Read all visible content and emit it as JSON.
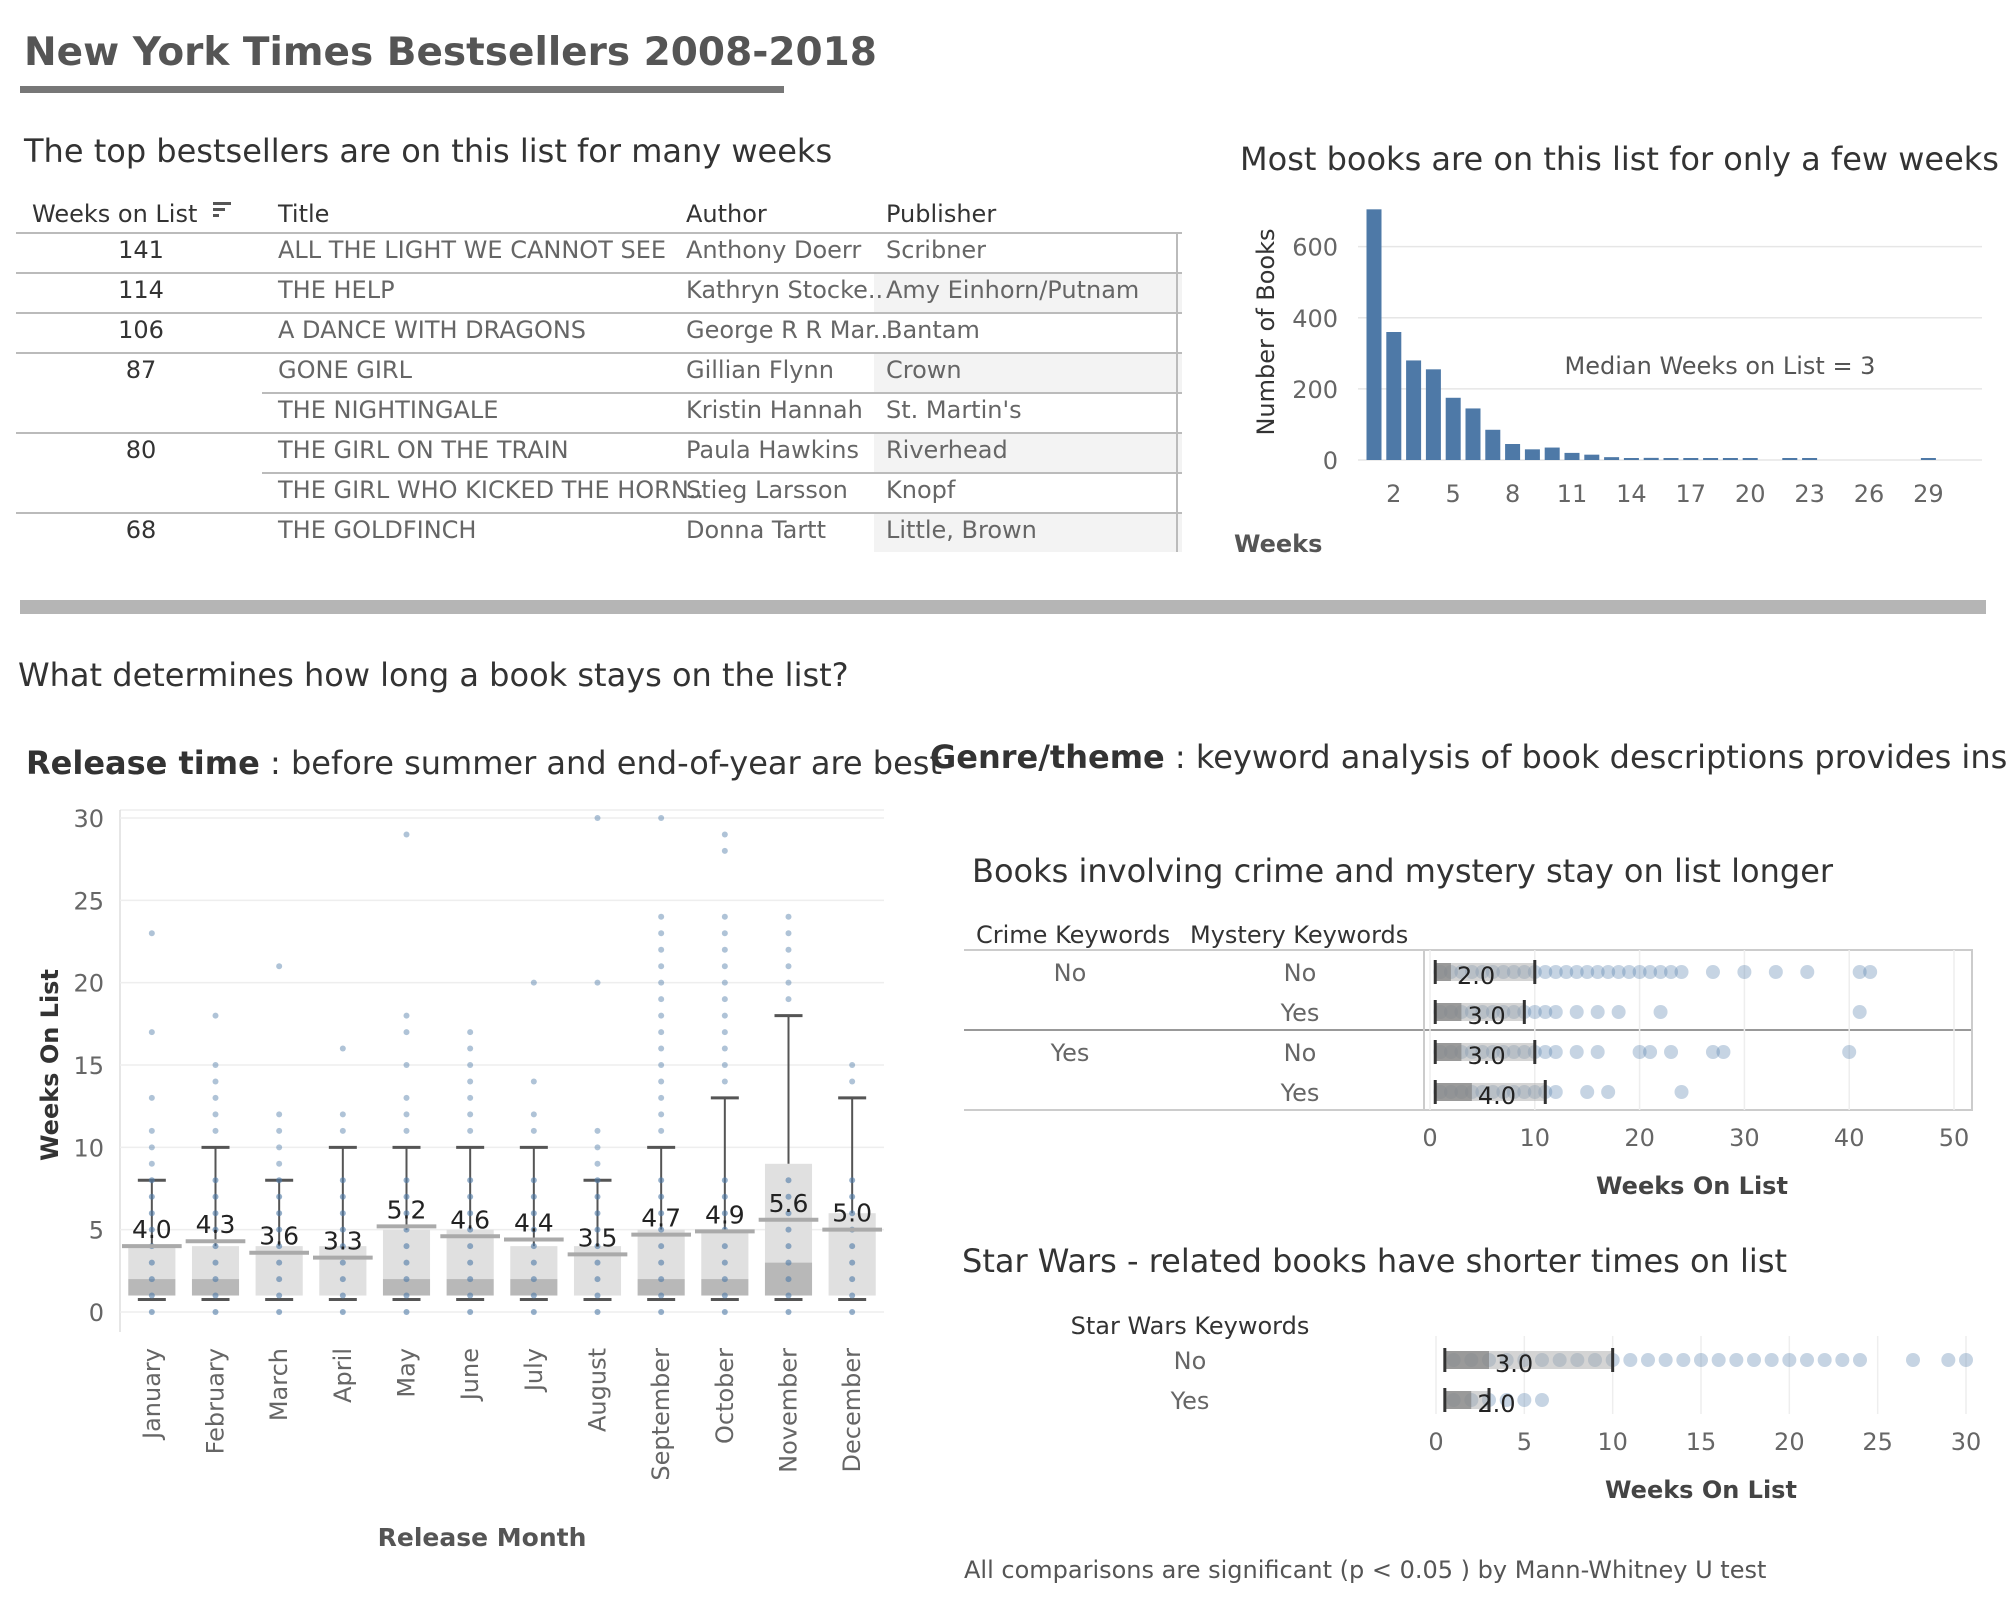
{
  "dashboard": {
    "title": "New York Times Bestsellers 2008-2018",
    "table_heading": "The top bestsellers are on this list for many weeks",
    "hist_heading": "Most books are on this list for only a few weeks",
    "section_heading": "What determines how long a book stays on the list?",
    "release_heading_bold": "Release time",
    "release_heading_rest": " : before summer and end-of-year are best",
    "genre_heading_bold": "Genre/theme",
    "genre_heading_rest": " : keyword analysis of book descriptions provides insight",
    "crime_heading": "Books involving crime and mystery stay on list longer",
    "starwars_heading": "Star Wars - related books have shorter times on list",
    "footnote": "All comparisons are significant (p < 0.05 ) by Mann-Whitney U test"
  },
  "table": {
    "columns": [
      "Weeks on List",
      "Title",
      "Author",
      "Publisher"
    ],
    "sort_icon": "sort-descending-icon",
    "rows": [
      {
        "weeks": "141",
        "title": "ALL THE LIGHT WE CANNOT SEE",
        "author": "Anthony Doerr",
        "publisher": "Scribner"
      },
      {
        "weeks": "114",
        "title": "THE HELP",
        "author": "Kathryn Stocke..",
        "publisher": "Amy Einhorn/Putnam"
      },
      {
        "weeks": "106",
        "title": "A DANCE WITH DRAGONS",
        "author": "George R R Mar..",
        "publisher": "Bantam"
      },
      {
        "weeks": "87",
        "title": "GONE GIRL",
        "author": "Gillian Flynn",
        "publisher": "Crown"
      },
      {
        "weeks": "",
        "title": "THE NIGHTINGALE",
        "author": "Kristin Hannah",
        "publisher": "St. Martin's"
      },
      {
        "weeks": "80",
        "title": "THE GIRL ON THE TRAIN",
        "author": "Paula Hawkins",
        "publisher": "Riverhead"
      },
      {
        "weeks": "",
        "title": "THE GIRL WHO KICKED THE HORN..",
        "author": "Stieg Larsson",
        "publisher": "Knopf"
      },
      {
        "weeks": "68",
        "title": "THE GOLDFINCH",
        "author": "Donna Tartt",
        "publisher": "Little, Brown"
      }
    ]
  },
  "chart_data": [
    {
      "type": "bar",
      "title": "Most books are on this list for only a few weeks",
      "xlabel": "Weeks",
      "ylabel": "Number of Books",
      "ylim": [
        0,
        720
      ],
      "yticks": [
        0,
        200,
        400,
        600
      ],
      "xticks": [
        2,
        5,
        8,
        11,
        14,
        17,
        20,
        23,
        26,
        29
      ],
      "x": [
        1,
        2,
        3,
        4,
        5,
        6,
        7,
        8,
        9,
        10,
        11,
        12,
        13,
        14,
        15,
        16,
        17,
        18,
        19,
        20,
        21,
        22,
        23,
        24,
        25,
        26,
        27,
        28,
        29
      ],
      "values": [
        705,
        360,
        280,
        255,
        175,
        145,
        85,
        45,
        30,
        35,
        20,
        15,
        8,
        5,
        6,
        3,
        3,
        2,
        2,
        2,
        0,
        1,
        1,
        0,
        0,
        0,
        0,
        0,
        1
      ],
      "annotation": "Median Weeks on List = 3",
      "color": "#4e79a7"
    },
    {
      "type": "box",
      "title": "Release time : before summer and end-of-year are best",
      "xlabel": "Release Month",
      "ylabel": "Weeks On List",
      "ylim": [
        0,
        30
      ],
      "yticks": [
        0,
        5,
        10,
        15,
        20,
        25,
        30
      ],
      "categories": [
        "January",
        "February",
        "March",
        "April",
        "May",
        "June",
        "July",
        "August",
        "September",
        "October",
        "November",
        "December"
      ],
      "means": [
        4.0,
        4.3,
        3.6,
        3.3,
        5.2,
        4.6,
        4.4,
        3.5,
        4.7,
        4.9,
        5.6,
        5.0
      ],
      "mean_labels": [
        "4.0",
        "4.3",
        "3.6",
        "3.3",
        "5.2",
        "4.6",
        "4.4",
        "3.5",
        "4.7",
        "4.9",
        "5.6",
        "5.0"
      ],
      "q1": [
        1,
        1,
        1,
        1,
        1,
        1,
        1,
        1,
        1,
        1,
        1,
        1
      ],
      "median": [
        2,
        2,
        1,
        1,
        2,
        2,
        2,
        1,
        2,
        2,
        3,
        1
      ],
      "q3": [
        4,
        4,
        4,
        4,
        5,
        5,
        4,
        4,
        5,
        5,
        9,
        6
      ],
      "whisker_low": [
        0,
        0,
        0,
        0,
        0,
        0,
        0,
        0,
        0,
        0,
        0,
        0
      ],
      "whisker_high": [
        8,
        10,
        8,
        10,
        10,
        10,
        10,
        8,
        10,
        13,
        18,
        13
      ],
      "outliers": [
        [
          9,
          10,
          11,
          13,
          17,
          23
        ],
        [
          11,
          12,
          13,
          14,
          15,
          18
        ],
        [
          9,
          10,
          11,
          12,
          21
        ],
        [
          11,
          12,
          16
        ],
        [
          11,
          12,
          13,
          15,
          17,
          18,
          29
        ],
        [
          11,
          12,
          13,
          14,
          15,
          16,
          17
        ],
        [
          11,
          12,
          14,
          20
        ],
        [
          9,
          10,
          11,
          20,
          30
        ],
        [
          11,
          12,
          13,
          14,
          15,
          16,
          17,
          18,
          19,
          20,
          21,
          22,
          23,
          24,
          30
        ],
        [
          14,
          15,
          16,
          17,
          18,
          19,
          20,
          21,
          22,
          23,
          24,
          28,
          29
        ],
        [
          19,
          20,
          21,
          22,
          23,
          24
        ],
        [
          14,
          15
        ]
      ],
      "color": "#4e79a7"
    },
    {
      "type": "scatter",
      "title": "Books involving crime and mystery stay on list longer",
      "xlabel": "Weeks On List",
      "row_headers": [
        "Crime Keywords",
        "Mystery Keywords"
      ],
      "xlim": [
        0,
        50
      ],
      "xticks": [
        0,
        10,
        20,
        30,
        40,
        50
      ],
      "rows": [
        {
          "crime": "No",
          "mystery": "No",
          "median_label": "2.0",
          "median": 2,
          "q3": 10,
          "points": [
            1,
            2,
            3,
            4,
            5,
            6,
            7,
            8,
            9,
            10,
            11,
            12,
            13,
            14,
            15,
            16,
            17,
            18,
            19,
            20,
            21,
            22,
            23,
            24,
            27,
            30,
            33,
            36,
            41,
            42
          ]
        },
        {
          "crime": "",
          "mystery": "Yes",
          "median_label": "3.0",
          "median": 3,
          "q3": 9,
          "points": [
            1,
            2,
            3,
            4,
            5,
            6,
            7,
            8,
            9,
            10,
            11,
            12,
            14,
            16,
            18,
            22,
            41
          ]
        },
        {
          "crime": "Yes",
          "mystery": "No",
          "median_label": "3.0",
          "median": 3,
          "q3": 10,
          "points": [
            1,
            2,
            3,
            4,
            5,
            6,
            7,
            8,
            9,
            10,
            11,
            12,
            14,
            16,
            20,
            21,
            23,
            27,
            28,
            40
          ]
        },
        {
          "crime": "",
          "mystery": "Yes",
          "median_label": "4.0",
          "median": 4,
          "q3": 11,
          "points": [
            1,
            2,
            3,
            4,
            5,
            6,
            7,
            8,
            9,
            10,
            11,
            12,
            15,
            17,
            24
          ]
        }
      ],
      "color": "#4e79a7"
    },
    {
      "type": "scatter",
      "title": "Star Wars - related books have shorter times on list",
      "xlabel": "Weeks On List",
      "row_headers": [
        "Star Wars Keywords"
      ],
      "xlim": [
        0,
        30
      ],
      "xticks": [
        0,
        5,
        10,
        15,
        20,
        25,
        30
      ],
      "rows": [
        {
          "label": "No",
          "median_label": "3.0",
          "median": 3,
          "q3": 10,
          "points": [
            1,
            2,
            3,
            4,
            5,
            6,
            7,
            8,
            9,
            10,
            11,
            12,
            13,
            14,
            15,
            16,
            17,
            18,
            19,
            20,
            21,
            22,
            23,
            24,
            27,
            29,
            30
          ]
        },
        {
          "label": "Yes",
          "median_label": "2.0",
          "median": 2,
          "q3": 3,
          "points": [
            1,
            2,
            3,
            4,
            5,
            6
          ]
        }
      ],
      "color": "#4e79a7"
    }
  ]
}
